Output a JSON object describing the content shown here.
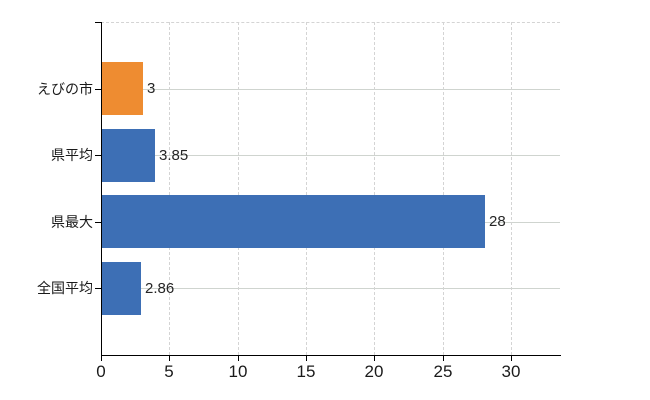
{
  "chart_data": {
    "type": "bar",
    "orientation": "horizontal",
    "title": "",
    "categories": [
      "えびの市",
      "県平均",
      "県最大",
      "全国平均"
    ],
    "values": [
      3,
      3.85,
      28,
      2.86
    ],
    "value_labels": [
      "3",
      "3.85",
      "28",
      "2.86"
    ],
    "bar_colors": [
      "#ee8c31",
      "#3d6fb5",
      "#3d6fb5",
      "#3d6fb5"
    ],
    "x_tick_values": [
      0,
      5,
      10,
      15,
      20,
      25,
      30
    ],
    "x_tick_labels": [
      "0",
      "5",
      "10",
      "15",
      "20",
      "25",
      "30"
    ],
    "xlim": [
      0,
      33.6
    ],
    "ylabel": "",
    "xlabel": "",
    "legend": null,
    "grid": {
      "vertical": "dashed light gray at each x tick",
      "horizontal": "solid light gray at each category center",
      "plot_top_border": "dashed light gray"
    }
  },
  "colors": {
    "background": "#ffffff",
    "axis": "#000000",
    "gridline": "#d4d4d4",
    "bar_orange": "#ee8c31",
    "bar_blue": "#3d6fb5",
    "text": "#1a1a1a"
  }
}
